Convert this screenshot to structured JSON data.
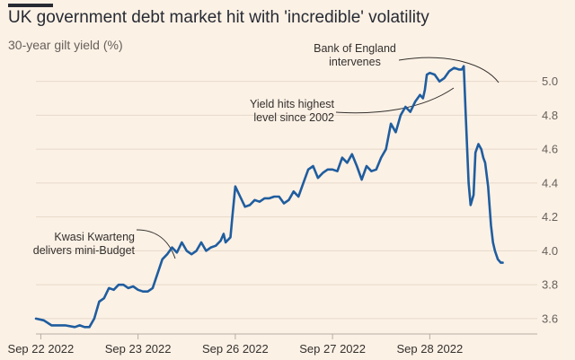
{
  "header": {
    "title": "UK government debt market hit with 'incredible' volatility",
    "subtitle": "30-year gilt yield (%)"
  },
  "colors": {
    "background": "#fcf1e5",
    "line": "#1f5d9f",
    "grid": "#e5d8ca",
    "text": "#33302e"
  },
  "chart_data": {
    "type": "line",
    "title": "UK government debt market hit with 'incredible' volatility",
    "ylabel": "30-year gilt yield (%)",
    "xlabel": "",
    "xlim": [
      0,
      5.1
    ],
    "ylim": [
      3.52,
      5.12
    ],
    "x_ticks": [
      {
        "x": 0.05,
        "label": "Sep 22 2022"
      },
      {
        "x": 1.05,
        "label": "Sep 23 2022"
      },
      {
        "x": 2.05,
        "label": "Sep 26 2022"
      },
      {
        "x": 3.05,
        "label": "Sep 27 2022"
      },
      {
        "x": 4.05,
        "label": "Sep 28 2022"
      }
    ],
    "y_ticks": [
      3.6,
      3.8,
      4.0,
      4.2,
      4.4,
      4.6,
      4.8,
      5.0
    ],
    "series": [
      {
        "name": "30-year gilt yield",
        "x": [
          0,
          0.08,
          0.16,
          0.2,
          0.3,
          0.4,
          0.45,
          0.5,
          0.55,
          0.6,
          0.65,
          0.7,
          0.75,
          0.8,
          0.85,
          0.9,
          0.95,
          1.0,
          1.05,
          1.1,
          1.15,
          1.2,
          1.3,
          1.35,
          1.4,
          1.45,
          1.5,
          1.55,
          1.6,
          1.65,
          1.7,
          1.75,
          1.8,
          1.85,
          1.9,
          1.93,
          1.95,
          2.0,
          2.02,
          2.05,
          2.1,
          2.15,
          2.2,
          2.25,
          2.3,
          2.35,
          2.4,
          2.45,
          2.5,
          2.55,
          2.6,
          2.65,
          2.7,
          2.75,
          2.8,
          2.85,
          2.9,
          2.95,
          3.0,
          3.05,
          3.1,
          3.15,
          3.2,
          3.25,
          3.3,
          3.35,
          3.4,
          3.45,
          3.5,
          3.55,
          3.6,
          3.65,
          3.7,
          3.75,
          3.8,
          3.85,
          3.9,
          3.95,
          3.98,
          4.0,
          4.02,
          4.05,
          4.1,
          4.15,
          4.2,
          4.25,
          4.3,
          4.35,
          4.38,
          4.4,
          4.42,
          4.45,
          4.47,
          4.5,
          4.52,
          4.55,
          4.58,
          4.6,
          4.62,
          4.65,
          4.68,
          4.7,
          4.72,
          4.75,
          4.78,
          4.8
        ],
        "values": [
          3.6,
          3.59,
          3.56,
          3.56,
          3.56,
          3.55,
          3.56,
          3.55,
          3.55,
          3.6,
          3.7,
          3.72,
          3.78,
          3.77,
          3.8,
          3.8,
          3.78,
          3.79,
          3.77,
          3.76,
          3.76,
          3.78,
          3.95,
          3.98,
          4.02,
          3.99,
          4.05,
          4.0,
          3.98,
          4.0,
          4.05,
          4.0,
          4.02,
          4.03,
          4.06,
          4.1,
          4.05,
          4.08,
          4.2,
          4.38,
          4.32,
          4.26,
          4.27,
          4.3,
          4.29,
          4.31,
          4.31,
          4.32,
          4.32,
          4.28,
          4.3,
          4.35,
          4.32,
          4.4,
          4.48,
          4.5,
          4.43,
          4.46,
          4.48,
          4.48,
          4.47,
          4.55,
          4.52,
          4.57,
          4.5,
          4.42,
          4.5,
          4.47,
          4.48,
          4.55,
          4.6,
          4.75,
          4.7,
          4.8,
          4.85,
          4.82,
          4.88,
          4.92,
          4.9,
          4.95,
          5.04,
          5.05,
          5.04,
          5.0,
          5.02,
          5.06,
          5.08,
          5.07,
          5.07,
          5.09,
          4.8,
          4.4,
          4.27,
          4.33,
          4.58,
          4.63,
          4.6,
          4.55,
          4.52,
          4.38,
          4.15,
          4.05,
          4.0,
          3.95,
          3.93,
          3.93
        ]
      }
    ],
    "annotations": [
      {
        "id": "bank-of-england",
        "lines": [
          "Bank of England",
          "intervenes"
        ],
        "x": 4.38,
        "y": 5.08
      },
      {
        "id": "yield-highest",
        "lines": [
          "Yield hits highest",
          "level since 2002"
        ],
        "x": 3.9,
        "y": 5.07
      },
      {
        "id": "mini-budget",
        "lines": [
          "Kwasi Kwarteng",
          "delivers mini-Budget"
        ],
        "x": 1.3,
        "y": 3.96
      }
    ]
  }
}
